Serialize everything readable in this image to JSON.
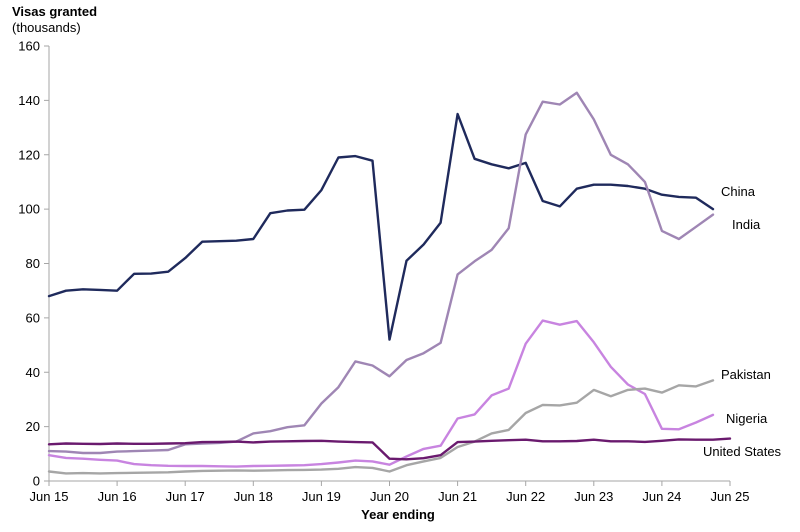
{
  "chart_data": {
    "type": "line",
    "ylabel": "Visas granted",
    "ylabel_unit": "(thousands)",
    "xlabel": "Year ending",
    "ylim": [
      0,
      160
    ],
    "yticks": [
      0,
      20,
      40,
      60,
      80,
      100,
      120,
      140,
      160
    ],
    "xtick_labels": [
      "Jun 15",
      "Jun 16",
      "Jun 17",
      "Jun 18",
      "Jun 19",
      "Jun 20",
      "Jun 21",
      "Jun 22",
      "Jun 23",
      "Jun 24",
      "Jun 25"
    ],
    "x": [
      "Jun 15",
      "Sep 15",
      "Dec 15",
      "Mar 16",
      "Jun 16",
      "Sep 16",
      "Dec 16",
      "Mar 17",
      "Jun 17",
      "Sep 17",
      "Dec 17",
      "Mar 18",
      "Jun 18",
      "Sep 18",
      "Dec 18",
      "Mar 19",
      "Jun 19",
      "Sep 19",
      "Dec 19",
      "Mar 20",
      "Jun 20",
      "Sep 20",
      "Dec 20",
      "Mar 21",
      "Jun 21",
      "Sep 21",
      "Dec 21",
      "Mar 22",
      "Jun 22",
      "Sep 22",
      "Dec 22",
      "Mar 23",
      "Jun 23",
      "Sep 23",
      "Dec 23",
      "Mar 24",
      "Jun 24",
      "Sep 24",
      "Dec 24",
      "Mar 25",
      "Jun 25"
    ],
    "grid": false,
    "legend": "direct labels at line ends",
    "series": [
      {
        "name": "China",
        "color": "#1f2a5c",
        "values": [
          68,
          70,
          70.5,
          70.3,
          70,
          76.2,
          76.3,
          77,
          82,
          88,
          88.2,
          88.4,
          89,
          98.5,
          99.5,
          99.8,
          107,
          119,
          119.5,
          117.8,
          52,
          81,
          87,
          95,
          135,
          118.5,
          116.5,
          115,
          117,
          103,
          101,
          107.5,
          109,
          109,
          108.5,
          107.5,
          105.3,
          104.5,
          104.2,
          100,
          null
        ]
      },
      {
        "name": "India",
        "color": "#9f86b4",
        "values": [
          11,
          10.8,
          10.3,
          10.3,
          10.8,
          11,
          11.2,
          11.4,
          13.5,
          13.8,
          14,
          14.5,
          17.5,
          18.3,
          19.8,
          20.5,
          28.5,
          34.5,
          44,
          42.5,
          38.5,
          44.5,
          47,
          50.8,
          76,
          80.8,
          85,
          93,
          127.5,
          139.5,
          138.5,
          142.8,
          133,
          120,
          116.5,
          110,
          92,
          89,
          93.5,
          98,
          null
        ]
      },
      {
        "name": "Nigeria",
        "color": "#c884e0",
        "values": [
          9.5,
          8.5,
          8.2,
          7.8,
          7.5,
          6.2,
          5.8,
          5.6,
          5.5,
          5.5,
          5.4,
          5.3,
          5.5,
          5.6,
          5.7,
          5.8,
          6.2,
          6.8,
          7.5,
          7.2,
          6,
          9,
          11.8,
          13,
          23,
          24.5,
          31.5,
          34,
          50.5,
          59,
          57.5,
          58.8,
          51,
          42,
          35.5,
          32,
          19.2,
          19,
          21.5,
          24.3,
          null
        ]
      },
      {
        "name": "Pakistan",
        "color": "#a6a6a6",
        "values": [
          3.5,
          2.8,
          2.9,
          2.8,
          2.9,
          3,
          3.1,
          3.2,
          3.5,
          3.7,
          3.8,
          3.9,
          3.8,
          3.9,
          4,
          4.1,
          4.2,
          4.5,
          5.1,
          4.8,
          3.5,
          5.8,
          7.2,
          8.5,
          12.5,
          14.5,
          17.5,
          18.8,
          25,
          28,
          27.8,
          28.8,
          33.5,
          31.2,
          33.5,
          34,
          32.5,
          35.2,
          34.8,
          37,
          null
        ]
      },
      {
        "name": "United States",
        "color": "#6a1a6e",
        "values": [
          13.5,
          13.8,
          13.7,
          13.6,
          13.8,
          13.7,
          13.7,
          13.8,
          13.9,
          14.3,
          14.4,
          14.5,
          14.2,
          14.5,
          14.6,
          14.7,
          14.8,
          14.5,
          14.3,
          14.2,
          8.2,
          8,
          8.4,
          9.5,
          14.3,
          14.5,
          14.8,
          15,
          15.2,
          14.6,
          14.6,
          14.7,
          15.2,
          14.6,
          14.6,
          14.4,
          14.8,
          15.3,
          15.2,
          15.2,
          15.6
        ]
      }
    ]
  }
}
